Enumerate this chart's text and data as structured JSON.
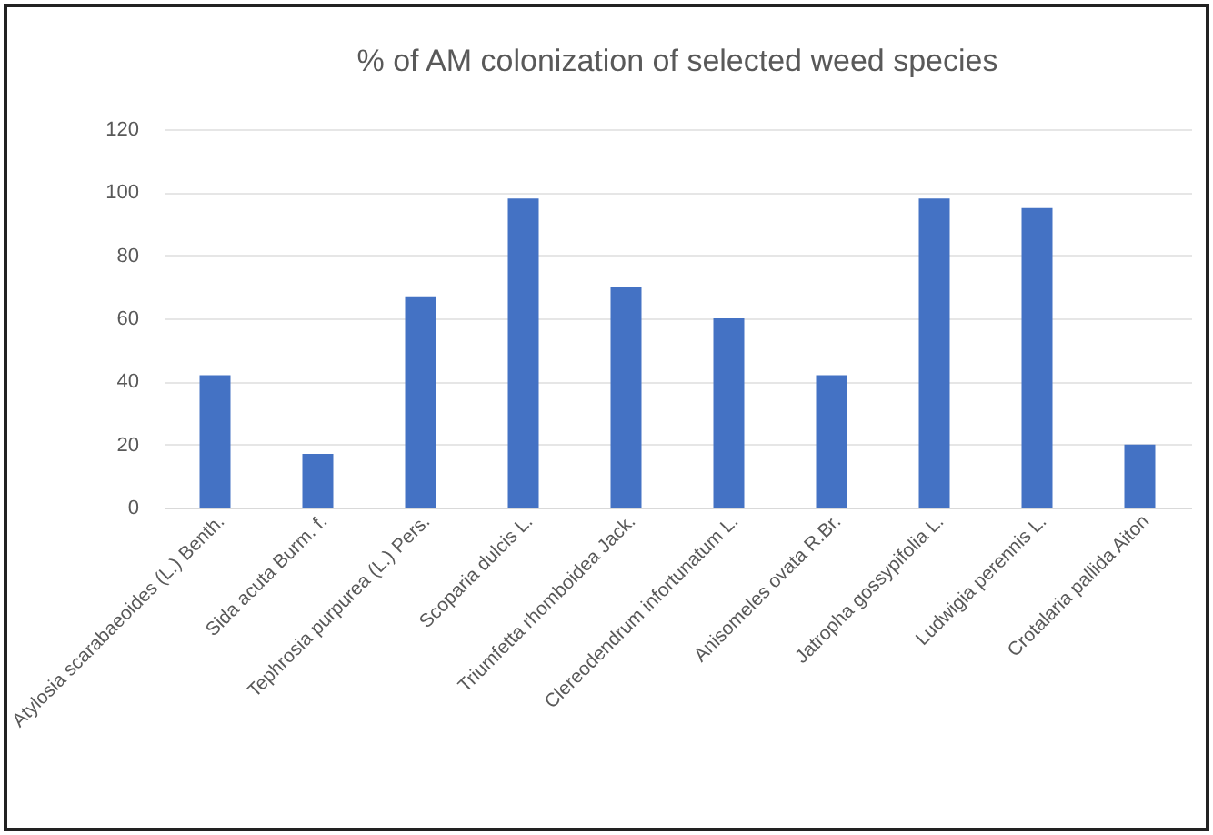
{
  "chart_data": {
    "type": "bar",
    "title": "% of AM colonization of selected weed species",
    "categories": [
      "Atylosia scarabaeoides (L.) Benth.",
      "Sida acuta Burm. f.",
      "Tephrosia purpurea (L.) Pers.",
      "Scoparia dulcis L.",
      "Triumfetta rhomboidea Jack.",
      "Clereodendrum infortunatum L.",
      "Anisomeles ovata R.Br.",
      "Jatropha gossypifolia L.",
      "Ludwigia perennis L.",
      "Crotalaria pallida Aiton"
    ],
    "values": [
      42,
      17,
      67,
      98,
      70,
      60,
      42,
      98,
      95,
      20
    ],
    "color": "#4472c4",
    "ylim": [
      0,
      120
    ],
    "yticks": [
      0,
      20,
      40,
      60,
      80,
      100,
      120
    ],
    "grid": "y"
  }
}
